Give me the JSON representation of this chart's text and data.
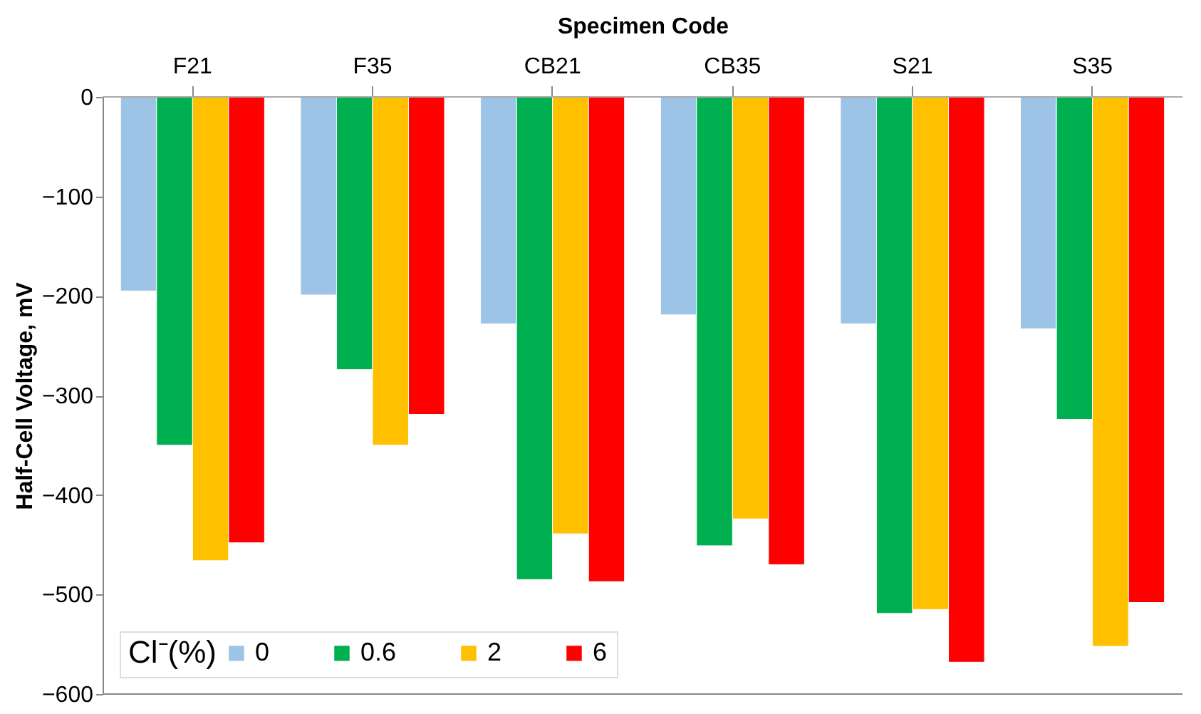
{
  "chart_data": {
    "type": "bar",
    "xlabel": "Specimen Code",
    "ylabel": "Half-Cell Voltage, mV",
    "legend_title": "Cl⁻(%)",
    "categories": [
      "F21",
      "F35",
      "CB21",
      "CB35",
      "S21",
      "S35"
    ],
    "series": [
      {
        "name": "0",
        "color": "#9dc3e6",
        "values": [
          -195,
          -199,
          -228,
          -219,
          -228,
          -233
        ]
      },
      {
        "name": "0.6",
        "color": "#00b050",
        "values": [
          -350,
          -274,
          -485,
          -451,
          -519,
          -324
        ]
      },
      {
        "name": "2",
        "color": "#ffc000",
        "values": [
          -466,
          -350,
          -439,
          -424,
          -515,
          -552
        ]
      },
      {
        "name": "6",
        "color": "#ff0000",
        "values": [
          -448,
          -319,
          -487,
          -470,
          -568,
          -508
        ]
      }
    ],
    "ylim": [
      -600,
      0
    ],
    "yticks": [
      -600,
      -500,
      -400,
      -300,
      -200,
      -100,
      0
    ],
    "grid": false,
    "legend": "bottom left"
  }
}
